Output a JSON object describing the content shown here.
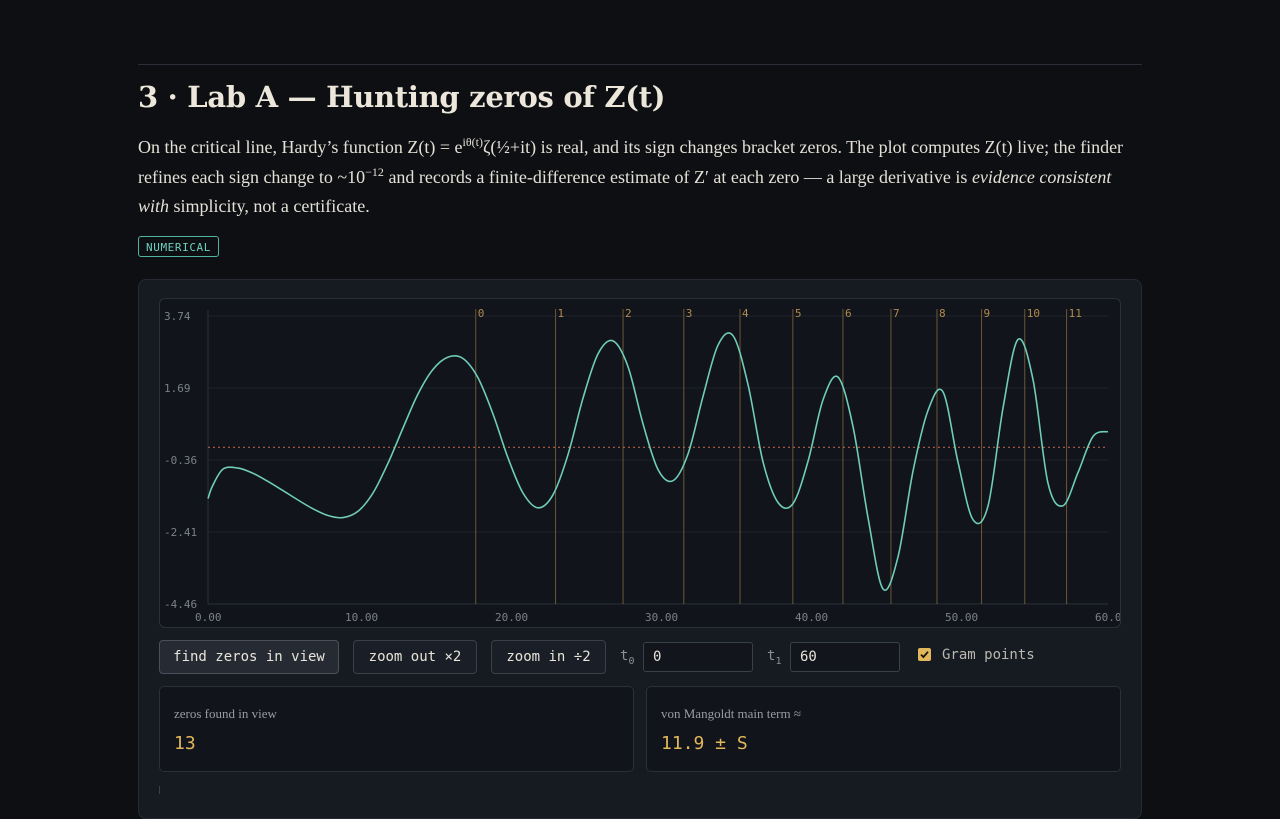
{
  "section": {
    "title": "3 · Lab A — Hunting zeros of Z(t)",
    "lede": {
      "p1": "On the critical line, Hardy’s function Z(t) = e",
      "sup1": "iθ(t)",
      "p2": "ζ(½+it) is real, and its sign changes bracket zeros. The plot computes Z(t) live; the finder refines each sign change to ~10",
      "sup2": "−12",
      "p3": " and records a finite-difference estimate of Z′ at each zero — a large derivative is ",
      "em": "evidence consistent with",
      "p4": " simplicity, not a certificate."
    },
    "badge": "NUMERICAL"
  },
  "controls": {
    "find_label": "find zeros in view",
    "zoom_out_label": "zoom out ×2",
    "zoom_in_label": "zoom in ÷2",
    "t0_label": "t",
    "t0_sub": "0",
    "t0_value": "0",
    "t1_label": "t",
    "t1_sub": "1",
    "t1_value": "60",
    "gram_label": "Gram points",
    "gram_checked": true
  },
  "stats": {
    "zeros_label": "zeros found in view",
    "zeros_value": "13",
    "mangoldt_label": "von Mangoldt main term ≈",
    "mangoldt_value": "11.9 ± S"
  },
  "colors": {
    "curve": "#6fcdb8",
    "gram_line": "#8a6f3f",
    "gram_label": "#b08a4e",
    "zero_line": "#c56a4e",
    "accent": "#e2b75c"
  },
  "chart_data": {
    "type": "line",
    "xlim": [
      0,
      60
    ],
    "ylim": [
      -4.46,
      3.74
    ],
    "y_ticks": [
      "3.74",
      "1.69",
      "-0.36",
      "-2.41",
      "-4.46"
    ],
    "x_ticks": [
      "0.00",
      "10.00",
      "20.00",
      "30.00",
      "40.00",
      "50.00",
      "60.00"
    ],
    "gram_points": [
      {
        "label": "0",
        "t": 17.85
      },
      {
        "label": "1",
        "t": 23.17
      },
      {
        "label": "2",
        "t": 27.67
      },
      {
        "label": "3",
        "t": 31.72
      },
      {
        "label": "4",
        "t": 35.47
      },
      {
        "label": "5",
        "t": 38.99
      },
      {
        "label": "6",
        "t": 42.33
      },
      {
        "label": "7",
        "t": 45.53
      },
      {
        "label": "8",
        "t": 48.6
      },
      {
        "label": "9",
        "t": 51.57
      },
      {
        "label": "10",
        "t": 54.45
      },
      {
        "label": "11",
        "t": 57.24
      }
    ],
    "series": [
      {
        "x": [
          0,
          0.3,
          1,
          2,
          3,
          4,
          5,
          6,
          7,
          8,
          9,
          10,
          11,
          12,
          13,
          14,
          15,
          16,
          17,
          18,
          19,
          20,
          21,
          22,
          23,
          24,
          25,
          26,
          27,
          28,
          29,
          30,
          31,
          32,
          33,
          34,
          35,
          36,
          37,
          38,
          39,
          40,
          41,
          42,
          43,
          44,
          45,
          46,
          47,
          48,
          49,
          50,
          51,
          52,
          53,
          54,
          55,
          56,
          57,
          58,
          59,
          60
        ],
        "y": [
          -1.46,
          -1.1,
          -0.62,
          -0.59,
          -0.74,
          -0.97,
          -1.23,
          -1.5,
          -1.75,
          -1.94,
          -2.0,
          -1.82,
          -1.3,
          -0.45,
          0.55,
          1.52,
          2.22,
          2.57,
          2.53,
          1.98,
          0.95,
          -0.3,
          -1.3,
          -1.72,
          -1.35,
          -0.21,
          1.4,
          2.66,
          3.03,
          2.3,
          0.67,
          -0.63,
          -0.95,
          -0.19,
          1.45,
          2.91,
          3.18,
          1.79,
          -0.41,
          -1.57,
          -1.6,
          -0.4,
          1.35,
          2.0,
          0.59,
          -2.0,
          -4.03,
          -3.12,
          -0.68,
          1.05,
          1.58,
          -0.42,
          -2.06,
          -1.67,
          1.12,
          3.07,
          1.93,
          -1.02,
          -1.66,
          -0.72,
          0.31,
          0.45
        ]
      }
    ]
  }
}
